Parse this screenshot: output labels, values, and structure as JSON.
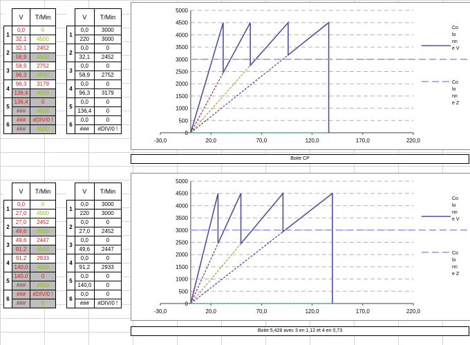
{
  "tables": [
    {
      "left": {
        "header": [
          "V",
          "T/Min"
        ],
        "groups": [
          {
            "idx": "1",
            "rows": [
              [
                "0,0",
                "0"
              ],
              [
                "32,1",
                "4500"
              ]
            ]
          },
          {
            "idx": "2",
            "rows": [
              [
                "32,1",
                "2452"
              ],
              [
                "58,9",
                "4500"
              ]
            ]
          },
          {
            "idx": "3",
            "rows": [
              [
                "58,9",
                "2752"
              ],
              [
                "96,3",
                "4500"
              ]
            ]
          },
          {
            "idx": "4",
            "rows": [
              [
                "96,3",
                "3179"
              ],
              [
                "136,4",
                "4500"
              ]
            ]
          },
          {
            "idx": "5",
            "rows": [
              [
                "136,4",
                "0"
              ],
              [
                "###",
                "4500"
              ]
            ]
          },
          {
            "idx": "6",
            "rows": [
              [
                "###",
                "#DIV/0 !"
              ],
              [
                "###",
                "4500"
              ]
            ]
          }
        ]
      },
      "right": {
        "header": [
          "V",
          "T/Min"
        ],
        "groups": [
          {
            "idx": "1",
            "rows": [
              [
                "0,0",
                "3000"
              ],
              [
                "220",
                "3000"
              ]
            ]
          },
          {
            "idx": "2",
            "rows": [
              [
                "0,0",
                "0"
              ],
              [
                "32,1",
                "2452"
              ]
            ]
          },
          {
            "idx": "3",
            "rows": [
              [
                "0,0",
                "0"
              ],
              [
                "58,9",
                "2752"
              ]
            ]
          },
          {
            "idx": "4",
            "rows": [
              [
                "0,0",
                "0"
              ],
              [
                "96,3",
                "3179"
              ]
            ]
          },
          {
            "idx": "5",
            "rows": [
              [
                "0,0",
                "0"
              ],
              [
                "136,4",
                "0"
              ]
            ]
          },
          {
            "idx": "6",
            "rows": [
              [
                "0,0",
                "0"
              ],
              [
                "###",
                "#DIV/0 !"
              ]
            ]
          }
        ]
      }
    },
    {
      "left": {
        "header": [
          "V",
          "T/Min"
        ],
        "groups": [
          {
            "idx": "1",
            "rows": [
              [
                "0,0",
                "0"
              ],
              [
                "27,0",
                "4500"
              ]
            ]
          },
          {
            "idx": "2",
            "rows": [
              [
                "27,0",
                "2452"
              ],
              [
                "49,6",
                "4500"
              ]
            ]
          },
          {
            "idx": "3",
            "rows": [
              [
                "49,6",
                "2447"
              ],
              [
                "91,2",
                "4500"
              ]
            ]
          },
          {
            "idx": "4",
            "rows": [
              [
                "91,2",
                "2933"
              ],
              [
                "140,0",
                "4500"
              ]
            ]
          },
          {
            "idx": "5",
            "rows": [
              [
                "140,0",
                "0"
              ],
              [
                "###",
                "4500"
              ]
            ]
          },
          {
            "idx": "6",
            "rows": [
              [
                "###",
                "#DIV/0 !"
              ],
              [
                "###",
                "0"
              ]
            ]
          }
        ]
      },
      "right": {
        "header": [
          "V",
          "T/Min"
        ],
        "groups": [
          {
            "idx": "1",
            "rows": [
              [
                "0,0",
                "3000"
              ],
              [
                "220",
                "3000"
              ]
            ]
          },
          {
            "idx": "2",
            "rows": [
              [
                "0,0",
                "0"
              ],
              [
                "27,0",
                "2452"
              ]
            ]
          },
          {
            "idx": "3",
            "rows": [
              [
                "0,0",
                "0"
              ],
              [
                "49,6",
                "2447"
              ]
            ]
          },
          {
            "idx": "4",
            "rows": [
              [
                "0,0",
                "0"
              ],
              [
                "91,2",
                "2933"
              ]
            ]
          },
          {
            "idx": "5",
            "rows": [
              [
                "0,0",
                "0"
              ],
              [
                "140,0",
                "0"
              ]
            ]
          },
          {
            "idx": "6",
            "rows": [
              [
                "0,0",
                "0"
              ],
              [
                "###",
                "#DIV/0 !"
              ]
            ]
          }
        ]
      }
    }
  ],
  "captions": [
    "Boite CP",
    "Boite 5,428 avec 3 en 1,12 et 4 en 0,73"
  ],
  "colors": {
    "solid": "#4f4f9e",
    "ref": "#8f95e0",
    "dash1": "#a02050",
    "dash2": "#a0a020",
    "dash3": "#4040a0",
    "zero": "#40c0c0",
    "grid": "#b0b0b0"
  },
  "chart_data": [
    {
      "type": "line",
      "title": "Boite CP",
      "xlim": [
        -30,
        220
      ],
      "ylim": [
        0,
        5000
      ],
      "xticks": [
        "-30,0",
        "20,0",
        "70,0",
        "120,0",
        "170,0",
        "220,0"
      ],
      "yticks": [
        "0",
        "500",
        "1000",
        "1500",
        "2000",
        "2500",
        "3000",
        "3500",
        "4000",
        "4500",
        "5000"
      ],
      "legend": [
        [
          "Co",
          "lo",
          "nn",
          "e V"
        ],
        [
          "Co",
          "lo",
          "nn",
          "e Z"
        ]
      ],
      "series": [
        {
          "style": "solid",
          "x": [
            0,
            32.1,
            32.1,
            58.9,
            58.9,
            96.3,
            96.3,
            136.4,
            136.4
          ],
          "y": [
            0,
            4500,
            2452,
            4500,
            2752,
            4500,
            3179,
            4500,
            0
          ]
        },
        {
          "style": "ref",
          "x": [
            0,
            220
          ],
          "y": [
            3000,
            3000
          ]
        },
        {
          "style": "dash1",
          "x": [
            0,
            32.1
          ],
          "y": [
            0,
            2452
          ]
        },
        {
          "style": "dash2",
          "x": [
            0,
            58.9
          ],
          "y": [
            0,
            2752
          ]
        },
        {
          "style": "dash3",
          "x": [
            0,
            96.3
          ],
          "y": [
            0,
            3179
          ]
        },
        {
          "style": "zero",
          "x": [
            0,
            136.4
          ],
          "y": [
            0,
            0
          ]
        }
      ]
    },
    {
      "type": "line",
      "title": "Boite 5,428 avec 3 en 1,12 et 4 en 0,73",
      "xlim": [
        -30,
        220
      ],
      "ylim": [
        0,
        5000
      ],
      "xticks": [
        "-30,0",
        "20,0",
        "70,0",
        "120,0",
        "170,0",
        "220,0"
      ],
      "yticks": [
        "0",
        "500",
        "1000",
        "1500",
        "2000",
        "2500",
        "3000",
        "3500",
        "4000",
        "4500",
        "5000"
      ],
      "legend": [
        [
          "Co",
          "lo",
          "nn",
          "e V"
        ],
        [
          "Co",
          "lo",
          "nn",
          "e Z"
        ]
      ],
      "series": [
        {
          "style": "solid",
          "x": [
            0,
            27.0,
            27.0,
            49.6,
            49.6,
            91.2,
            91.2,
            140.0,
            140.0
          ],
          "y": [
            0,
            4500,
            2452,
            4500,
            2447,
            4500,
            2933,
            4500,
            0
          ]
        },
        {
          "style": "ref",
          "x": [
            0,
            220
          ],
          "y": [
            3000,
            3000
          ]
        },
        {
          "style": "dash1",
          "x": [
            0,
            27.0
          ],
          "y": [
            0,
            2452
          ]
        },
        {
          "style": "dash2",
          "x": [
            0,
            49.6
          ],
          "y": [
            0,
            2447
          ]
        },
        {
          "style": "dash3",
          "x": [
            0,
            91.2
          ],
          "y": [
            0,
            2933
          ]
        },
        {
          "style": "zero",
          "x": [
            0,
            140.0
          ],
          "y": [
            0,
            0
          ]
        }
      ]
    }
  ]
}
